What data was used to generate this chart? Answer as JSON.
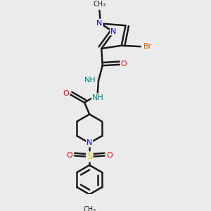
{
  "background_color": "#ebebeb",
  "bond_color": "#1a1a1a",
  "atom_colors": {
    "N": "#0000ff",
    "O": "#ff0000",
    "Br": "#cc6600",
    "S": "#cccc00",
    "NH": "#008080",
    "C": "#1a1a1a"
  },
  "figsize": [
    3.0,
    3.0
  ],
  "dpi": 100
}
